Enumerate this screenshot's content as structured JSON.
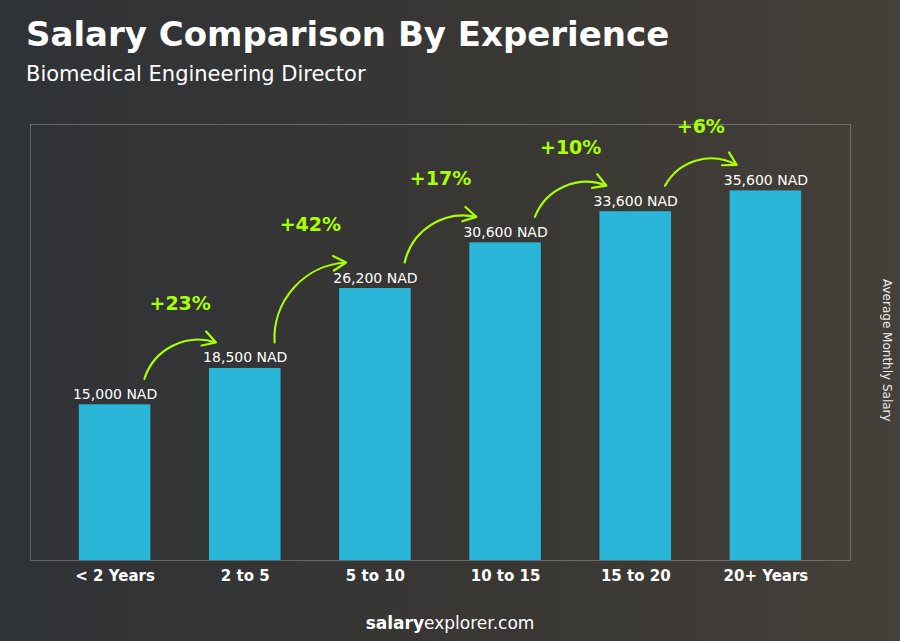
{
  "chart_data": {
    "type": "bar",
    "title": "Salary Comparison By Experience",
    "subtitle": "Biomedical Engineering Director",
    "ylabel": "Average Monthly Salary",
    "caption": [
      "salary",
      "explorer.com"
    ],
    "categories": [
      "< 2 Years",
      "2 to 5",
      "5 to 10",
      "10 to 15",
      "15 to 20",
      "20+ Years"
    ],
    "values": [
      15000,
      18500,
      26200,
      30600,
      33600,
      35600
    ],
    "value_labels": [
      "15,000 NAD",
      "18,500 NAD",
      "26,200 NAD",
      "30,600 NAD",
      "33,600 NAD",
      "35,600 NAD"
    ],
    "data_labels": true,
    "color": "#29B6D8",
    "ylim": [
      0,
      42000
    ],
    "tick_labels": "x",
    "grid": false,
    "annotations": [
      {
        "text": "+23%",
        "from": "< 2 Years",
        "to": "2 to 5",
        "color": "#AAFF00"
      },
      {
        "text": "+42%",
        "from": "2 to 5",
        "to": "5 to 10",
        "color": "#AAFF00"
      },
      {
        "text": "+17%",
        "from": "5 to 10",
        "to": "10 to 15",
        "color": "#AAFF00"
      },
      {
        "text": "+10%",
        "from": "10 to 15",
        "to": "15 to 20",
        "color": "#AAFF00"
      },
      {
        "text": "+6%",
        "from": "15 to 20",
        "to": "20+ Years",
        "color": "#AAFF00"
      }
    ]
  }
}
